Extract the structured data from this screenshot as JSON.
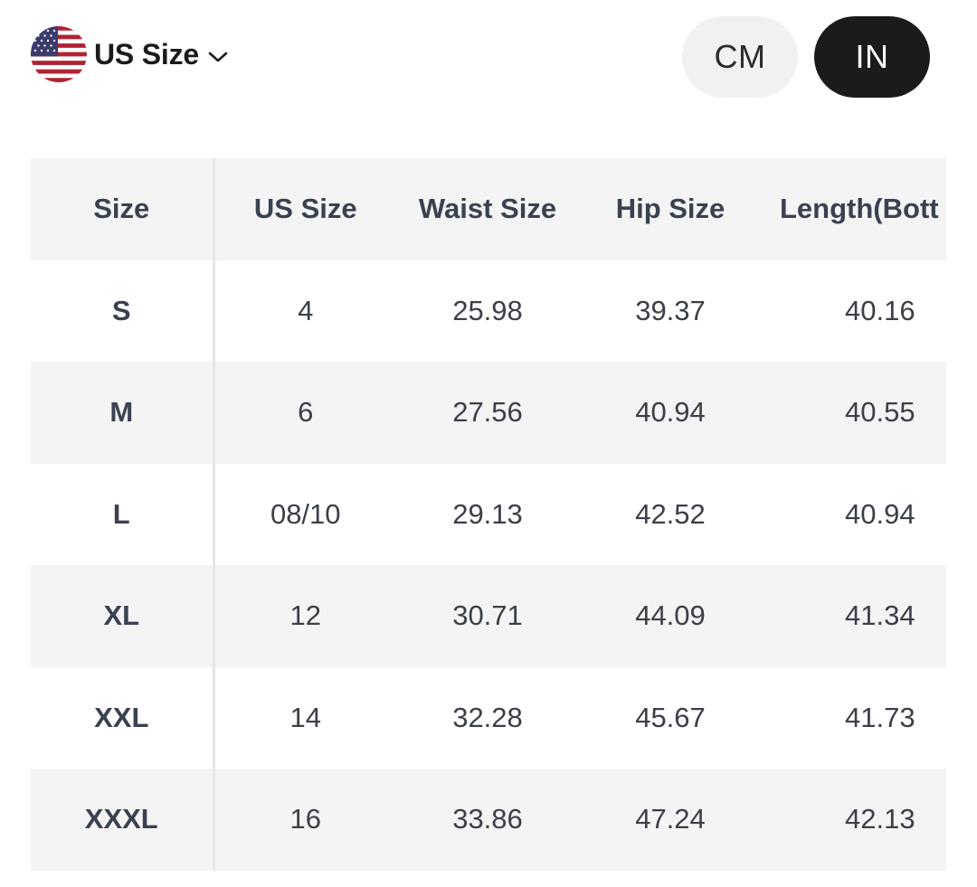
{
  "header": {
    "region_label": "US Size",
    "flag_icon": "us-flag-icon",
    "chevron_icon": "chevron-down-icon",
    "units": [
      {
        "label": "CM",
        "selected": false
      },
      {
        "label": "IN",
        "selected": true
      }
    ]
  },
  "table": {
    "columns": [
      "Size",
      "US Size",
      "Waist Size",
      "Hip Size",
      "Length(Bott"
    ],
    "rows": [
      [
        "S",
        "4",
        "25.98",
        "39.37",
        "40.16"
      ],
      [
        "M",
        "6",
        "27.56",
        "40.94",
        "40.55"
      ],
      [
        "L",
        "08/10",
        "29.13",
        "42.52",
        "40.94"
      ],
      [
        "XL",
        "12",
        "30.71",
        "44.09",
        "41.34"
      ],
      [
        "XXL",
        "14",
        "32.28",
        "45.67",
        "41.73"
      ],
      [
        "XXXL",
        "16",
        "33.86",
        "47.24",
        "42.13"
      ]
    ]
  },
  "colors": {
    "selected_toggle_bg": "#1b1b1b",
    "unselected_toggle_bg": "#f1f1f1",
    "stripe": "#f4f4f4",
    "text": "#3a4150"
  }
}
